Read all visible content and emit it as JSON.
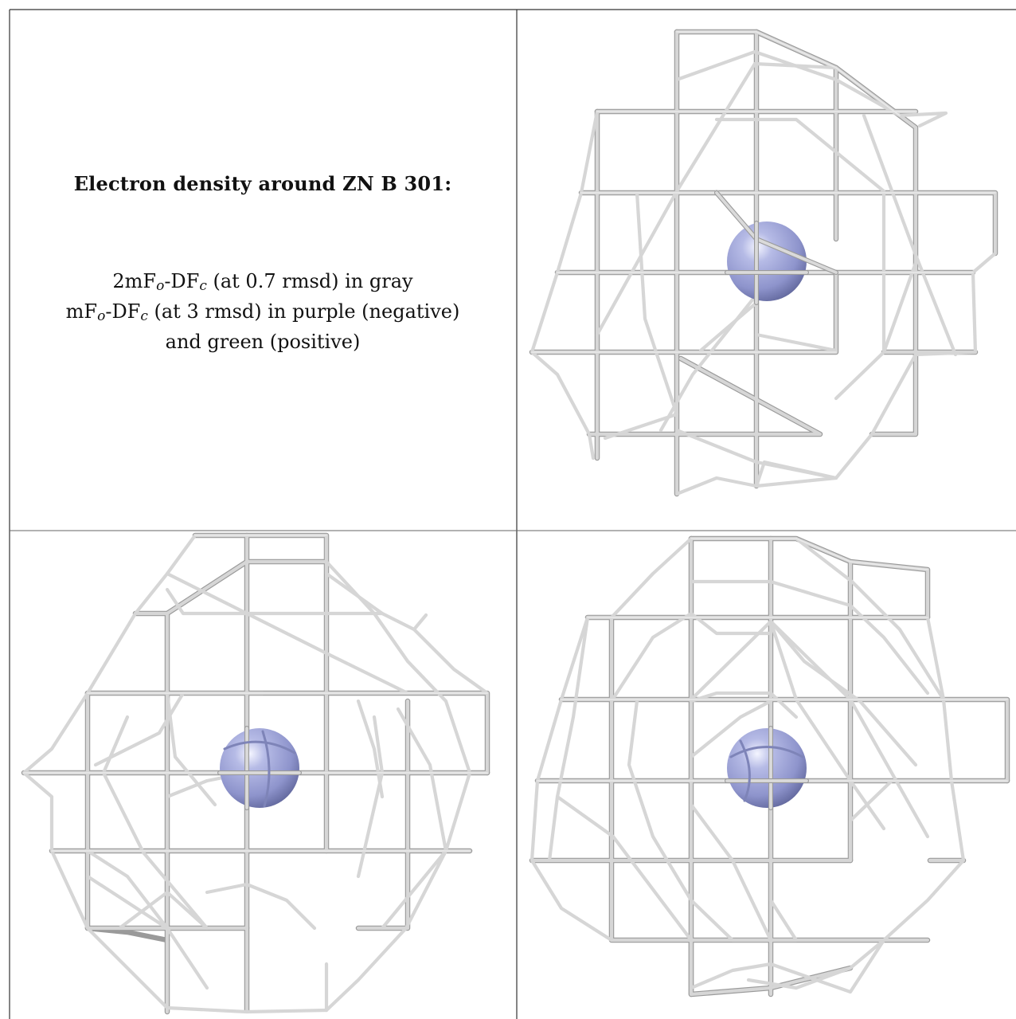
{
  "caption": {
    "title": "Electron density around ZN B 301:",
    "line1": {
      "a": "2mF",
      "sub1": "o",
      "b": "-DF",
      "sub2": "c",
      "c": " (at 0.7 rmsd) in gray"
    },
    "line2": {
      "a": "mF",
      "sub1": "o",
      "b": "-DF",
      "sub2": "c",
      "c": " (at 3 rmsd) in purple (negative)"
    },
    "line3": "and green (positive)"
  },
  "colors": {
    "mesh": "#c4c4c4",
    "mesh_dark": "#8a8a8a",
    "mesh_light": "#e2e2e2",
    "atom": "#9ca2d4",
    "atom_shadow": "#6a70a8",
    "border": "#333333"
  },
  "panels": [
    {
      "name": "view-1",
      "atom": "ZN"
    },
    {
      "name": "view-2",
      "atom": "ZN"
    },
    {
      "name": "view-3",
      "atom": "ZN"
    }
  ]
}
